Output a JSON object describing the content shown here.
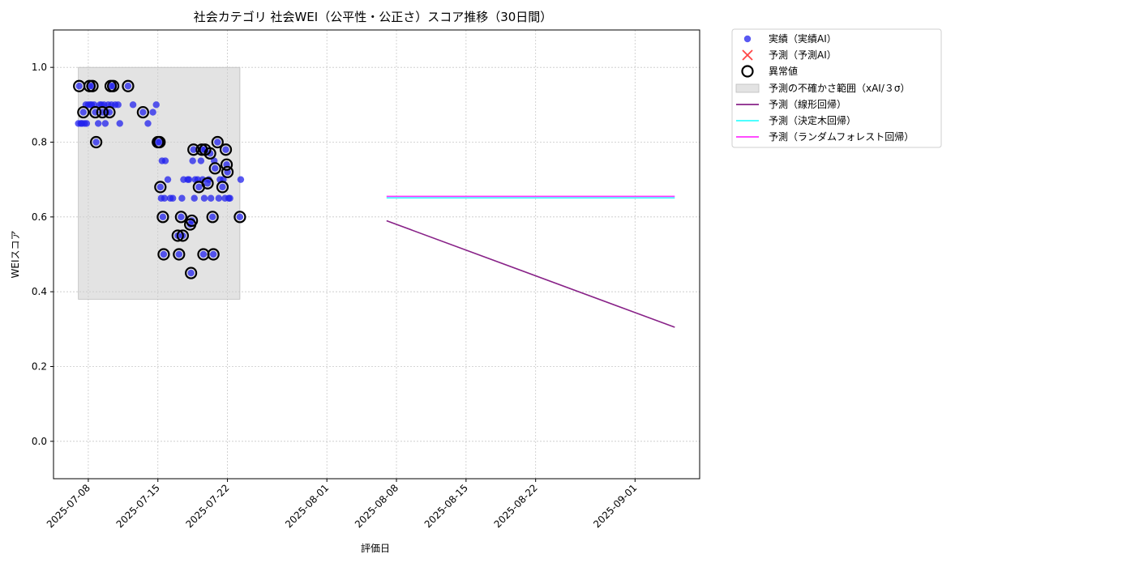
{
  "chart_data": {
    "type": "scatter",
    "title": "社会カテゴリ 社会WEI（公平性・公正さ）スコア推移（30日間）",
    "xlabel": "評価日",
    "ylabel": "WEIスコア",
    "xlim": [
      "2025-07-04T12:00",
      "2025-09-07T12:00"
    ],
    "ylim": [
      -0.1,
      1.1
    ],
    "x_ticks": [
      "2025-07-08",
      "2025-07-15",
      "2025-07-22",
      "2025-08-01",
      "2025-08-08",
      "2025-08-15",
      "2025-08-22",
      "2025-09-01"
    ],
    "y_ticks": [
      "0.0",
      "0.2",
      "0.4",
      "0.6",
      "0.8",
      "1.0"
    ],
    "grid": true,
    "legend_position": "outside-top-right",
    "series": [
      {
        "name": "実績（実績AI）",
        "kind": "scatter",
        "color": "#2222ee",
        "points": [
          [
            "2025-07-07T00:00",
            0.85
          ],
          [
            "2025-07-07T02:00",
            0.95
          ],
          [
            "2025-07-07T06:00",
            0.85
          ],
          [
            "2025-07-07T09:00",
            0.85
          ],
          [
            "2025-07-07T12:00",
            0.88
          ],
          [
            "2025-07-07T15:00",
            0.85
          ],
          [
            "2025-07-07T18:00",
            0.9
          ],
          [
            "2025-07-07T20:00",
            0.85
          ],
          [
            "2025-07-08T00:00",
            0.9
          ],
          [
            "2025-07-08T03:00",
            0.95
          ],
          [
            "2025-07-08T05:00",
            0.9
          ],
          [
            "2025-07-08T08:00",
            0.9
          ],
          [
            "2025-07-08T10:00",
            0.95
          ],
          [
            "2025-07-08T14:00",
            0.9
          ],
          [
            "2025-07-08T17:00",
            0.88
          ],
          [
            "2025-07-08T19:00",
            0.8
          ],
          [
            "2025-07-09T00:00",
            0.85
          ],
          [
            "2025-07-09T04:00",
            0.9
          ],
          [
            "2025-07-09T08:00",
            0.9
          ],
          [
            "2025-07-09T10:00",
            0.88
          ],
          [
            "2025-07-09T14:00",
            0.9
          ],
          [
            "2025-07-09T17:00",
            0.85
          ],
          [
            "2025-07-09T20:00",
            0.88
          ],
          [
            "2025-07-10T00:00",
            0.9
          ],
          [
            "2025-07-10T03:00",
            0.88
          ],
          [
            "2025-07-10T06:00",
            0.95
          ],
          [
            "2025-07-10T08:00",
            0.9
          ],
          [
            "2025-07-10T12:00",
            0.95
          ],
          [
            "2025-07-10T17:00",
            0.9
          ],
          [
            "2025-07-11T00:00",
            0.9
          ],
          [
            "2025-07-11T04:00",
            0.85
          ],
          [
            "2025-07-12T00:00",
            0.95
          ],
          [
            "2025-07-12T12:00",
            0.9
          ],
          [
            "2025-07-13T12:00",
            0.88
          ],
          [
            "2025-07-14T00:00",
            0.85
          ],
          [
            "2025-07-14T12:00",
            0.88
          ],
          [
            "2025-07-14T20:00",
            0.9
          ],
          [
            "2025-07-15T00:00",
            0.8
          ],
          [
            "2025-07-15T04:00",
            0.8
          ],
          [
            "2025-07-15T06:00",
            0.68
          ],
          [
            "2025-07-15T08:00",
            0.65
          ],
          [
            "2025-07-15T10:00",
            0.75
          ],
          [
            "2025-07-15T12:00",
            0.6
          ],
          [
            "2025-07-15T14:00",
            0.5
          ],
          [
            "2025-07-15T16:00",
            0.65
          ],
          [
            "2025-07-15T18:00",
            0.75
          ],
          [
            "2025-07-16T00:00",
            0.7
          ],
          [
            "2025-07-16T06:00",
            0.65
          ],
          [
            "2025-07-16T12:00",
            0.65
          ],
          [
            "2025-07-17T00:00",
            0.55
          ],
          [
            "2025-07-17T03:00",
            0.5
          ],
          [
            "2025-07-17T08:00",
            0.6
          ],
          [
            "2025-07-17T10:00",
            0.65
          ],
          [
            "2025-07-17T12:00",
            0.55
          ],
          [
            "2025-07-17T14:00",
            0.7
          ],
          [
            "2025-07-18T00:00",
            0.7
          ],
          [
            "2025-07-18T03:00",
            0.7
          ],
          [
            "2025-07-18T06:00",
            0.58
          ],
          [
            "2025-07-18T08:00",
            0.45
          ],
          [
            "2025-07-18T10:00",
            0.59
          ],
          [
            "2025-07-18T12:00",
            0.75
          ],
          [
            "2025-07-18T14:00",
            0.78
          ],
          [
            "2025-07-18T16:00",
            0.65
          ],
          [
            "2025-07-18T18:00",
            0.7
          ],
          [
            "2025-07-19T00:00",
            0.7
          ],
          [
            "2025-07-19T03:00",
            0.68
          ],
          [
            "2025-07-19T08:00",
            0.75
          ],
          [
            "2025-07-19T10:00",
            0.78
          ],
          [
            "2025-07-19T12:00",
            0.7
          ],
          [
            "2025-07-19T14:00",
            0.5
          ],
          [
            "2025-07-19T16:00",
            0.65
          ],
          [
            "2025-07-19T18:00",
            0.78
          ],
          [
            "2025-07-20T00:00",
            0.69
          ],
          [
            "2025-07-20T03:00",
            0.7
          ],
          [
            "2025-07-20T06:00",
            0.77
          ],
          [
            "2025-07-20T08:00",
            0.65
          ],
          [
            "2025-07-20T12:00",
            0.6
          ],
          [
            "2025-07-20T14:00",
            0.5
          ],
          [
            "2025-07-20T16:00",
            0.75
          ],
          [
            "2025-07-20T18:00",
            0.73
          ],
          [
            "2025-07-21T00:00",
            0.8
          ],
          [
            "2025-07-21T03:00",
            0.65
          ],
          [
            "2025-07-21T06:00",
            0.7
          ],
          [
            "2025-07-21T12:00",
            0.68
          ],
          [
            "2025-07-21T14:00",
            0.7
          ],
          [
            "2025-07-21T18:00",
            0.65
          ],
          [
            "2025-07-21T20:00",
            0.78
          ],
          [
            "2025-07-21T22:00",
            0.74
          ],
          [
            "2025-07-22T00:00",
            0.72
          ],
          [
            "2025-07-22T03:00",
            0.65
          ],
          [
            "2025-07-22T06:00",
            0.65
          ],
          [
            "2025-07-23T06:00",
            0.6
          ],
          [
            "2025-07-23T08:00",
            0.7
          ]
        ]
      },
      {
        "name": "予測（予測AI）",
        "kind": "scatter-x",
        "color": "#ff4444",
        "points": []
      },
      {
        "name": "異常値",
        "kind": "ring",
        "color": "#000000",
        "points": [
          [
            "2025-07-07T02:00",
            0.95
          ],
          [
            "2025-07-07T12:00",
            0.88
          ],
          [
            "2025-07-08T03:00",
            0.95
          ],
          [
            "2025-07-08T10:00",
            0.95
          ],
          [
            "2025-07-08T17:00",
            0.88
          ],
          [
            "2025-07-08T19:00",
            0.8
          ],
          [
            "2025-07-09T10:00",
            0.88
          ],
          [
            "2025-07-10T03:00",
            0.88
          ],
          [
            "2025-07-10T06:00",
            0.95
          ],
          [
            "2025-07-10T12:00",
            0.95
          ],
          [
            "2025-07-12T00:00",
            0.95
          ],
          [
            "2025-07-13T12:00",
            0.88
          ],
          [
            "2025-07-15T00:00",
            0.8
          ],
          [
            "2025-07-15T04:00",
            0.8
          ],
          [
            "2025-07-15T06:00",
            0.68
          ],
          [
            "2025-07-15T12:00",
            0.6
          ],
          [
            "2025-07-15T14:00",
            0.5
          ],
          [
            "2025-07-17T00:00",
            0.55
          ],
          [
            "2025-07-17T03:00",
            0.5
          ],
          [
            "2025-07-17T08:00",
            0.6
          ],
          [
            "2025-07-17T12:00",
            0.55
          ],
          [
            "2025-07-18T06:00",
            0.58
          ],
          [
            "2025-07-18T08:00",
            0.45
          ],
          [
            "2025-07-18T10:00",
            0.59
          ],
          [
            "2025-07-18T14:00",
            0.78
          ],
          [
            "2025-07-19T03:00",
            0.68
          ],
          [
            "2025-07-19T10:00",
            0.78
          ],
          [
            "2025-07-19T14:00",
            0.5
          ],
          [
            "2025-07-19T18:00",
            0.78
          ],
          [
            "2025-07-20T00:00",
            0.69
          ],
          [
            "2025-07-20T06:00",
            0.77
          ],
          [
            "2025-07-20T12:00",
            0.6
          ],
          [
            "2025-07-20T14:00",
            0.5
          ],
          [
            "2025-07-20T18:00",
            0.73
          ],
          [
            "2025-07-21T00:00",
            0.8
          ],
          [
            "2025-07-21T12:00",
            0.68
          ],
          [
            "2025-07-21T20:00",
            0.78
          ],
          [
            "2025-07-21T22:00",
            0.74
          ],
          [
            "2025-07-22T00:00",
            0.72
          ],
          [
            "2025-07-23T06:00",
            0.6
          ]
        ]
      },
      {
        "name": "予測の不確かさ範囲（xAI/３σ）",
        "kind": "band",
        "color": "#cccccc",
        "x_range": [
          "2025-07-07T00:00",
          "2025-07-23T06:00"
        ],
        "y_range": [
          0.38,
          1.0
        ]
      },
      {
        "name": "予測（線形回帰）",
        "kind": "line",
        "color": "#882288",
        "points": [
          [
            "2025-08-07T00:00",
            0.59
          ],
          [
            "2025-09-05T00:00",
            0.305
          ]
        ]
      },
      {
        "name": "予測（決定木回帰）",
        "kind": "line",
        "color": "#33ffff",
        "points": [
          [
            "2025-08-07T00:00",
            0.651
          ],
          [
            "2025-09-05T00:00",
            0.651
          ]
        ]
      },
      {
        "name": "予測（ランダムフォレスト回帰）",
        "kind": "line",
        "color": "#ff33ff",
        "points": [
          [
            "2025-08-07T00:00",
            0.655
          ],
          [
            "2025-09-05T00:00",
            0.655
          ]
        ]
      }
    ]
  }
}
